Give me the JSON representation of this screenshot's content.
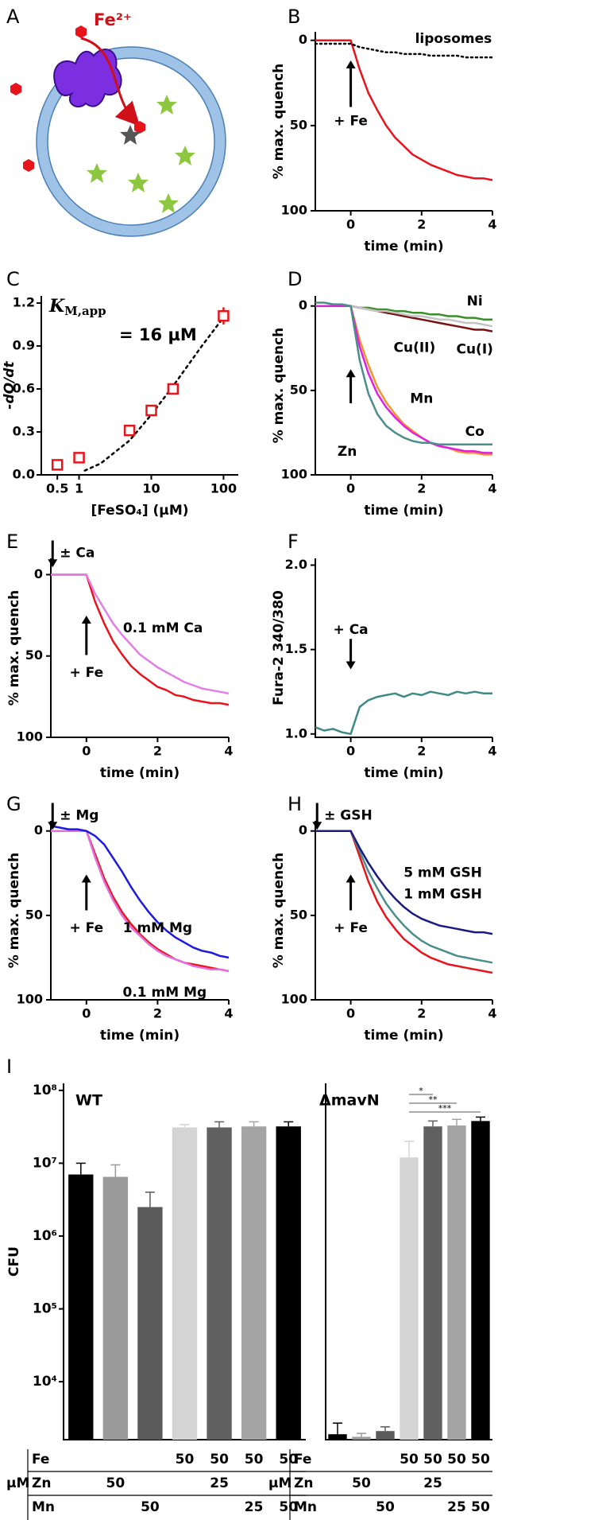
{
  "chart_data": [
    {
      "type": "diagram",
      "panel": "A",
      "label": "Fe²⁺"
    },
    {
      "type": "line",
      "panel": "B",
      "x_label": "time (min)",
      "y_label": "% max. quench",
      "x": [
        -1,
        -0.75,
        -0.5,
        -0.25,
        0,
        0.25,
        0.5,
        0.75,
        1,
        1.25,
        1.5,
        1.75,
        2,
        2.25,
        2.5,
        2.75,
        3,
        3.25,
        3.5,
        3.75,
        4
      ],
      "xlim": [
        -1,
        4
      ],
      "xticks": [
        0,
        2,
        4
      ],
      "ylim": [
        100,
        -5
      ],
      "yticks": [
        0,
        50,
        100
      ],
      "annotations": [
        "+ Fe"
      ],
      "series": [
        {
          "color": "#e8141c",
          "values": [
            0,
            0,
            0,
            0,
            0,
            17,
            31,
            41,
            50,
            57,
            62,
            67,
            70,
            73,
            75,
            77,
            79,
            80,
            81,
            81,
            82
          ]
        },
        {
          "name": "liposomes",
          "color": "#000000",
          "style": "dotted",
          "values": [
            2,
            2,
            2,
            2,
            2,
            4,
            5,
            6,
            7,
            7,
            8,
            8,
            8,
            9,
            9,
            9,
            9,
            10,
            10,
            10,
            10
          ]
        }
      ]
    },
    {
      "type": "scatter",
      "panel": "C",
      "x_label": "[FeSO₄] (µM)",
      "y_label": "-dQ/dt",
      "xscale": "log",
      "x": [
        0.5,
        1,
        5,
        10,
        20,
        100
      ],
      "values": [
        0.07,
        0.12,
        0.31,
        0.45,
        0.6,
        1.11
      ],
      "errors": [
        0.02,
        0.02,
        0.02,
        0.02,
        0.02,
        0.06
      ],
      "color": "#e8141c",
      "fit": {
        "x": [
          1.2,
          2,
          5,
          10,
          20,
          50,
          100
        ],
        "values": [
          0.03,
          0.08,
          0.24,
          0.42,
          0.62,
          0.9,
          1.1
        ]
      },
      "xlim": [
        0.3,
        160
      ],
      "xticks": [
        0.5,
        1,
        10,
        100
      ],
      "ylim": [
        0,
        1.25
      ],
      "yticks": [
        {
          "value": 0,
          "label": "0.0"
        },
        0.3,
        0.6,
        0.9,
        1.2
      ],
      "annotation_symbol": "K",
      "annotation_subscript": "M,app",
      "annotation": "= 16 µM"
    },
    {
      "type": "line",
      "panel": "D",
      "x_label": "time (min)",
      "y_label": "% max. quench",
      "x": [
        -1,
        -0.75,
        -0.5,
        -0.25,
        0,
        0.25,
        0.5,
        0.75,
        1,
        1.25,
        1.5,
        1.75,
        2,
        2.25,
        2.5,
        2.75,
        3,
        3.25,
        3.5,
        3.75,
        4
      ],
      "xlim": [
        -1,
        4
      ],
      "xticks": [
        0,
        2,
        4
      ],
      "ylim": [
        100,
        -6
      ],
      "yticks": [
        0,
        50,
        100
      ],
      "series": [
        {
          "name": "Ni",
          "color": "#3a8f2a",
          "values": [
            0,
            0,
            0,
            0,
            0,
            1,
            1,
            2,
            2,
            3,
            3,
            4,
            4,
            5,
            5,
            6,
            6,
            7,
            7,
            8,
            8
          ]
        },
        {
          "name": "Cu(II)",
          "color": "#7a1010",
          "values": [
            0,
            0,
            0,
            0,
            0,
            1,
            2,
            3,
            4,
            5,
            6,
            7,
            8,
            9,
            10,
            11,
            12,
            13,
            14,
            14,
            15
          ]
        },
        {
          "name": "Cu(I)",
          "color": "#c4c4c4",
          "values": [
            0,
            0,
            0,
            0,
            0,
            1,
            2,
            3,
            3,
            4,
            5,
            6,
            6,
            7,
            8,
            8,
            9,
            10,
            10,
            11,
            12
          ]
        },
        {
          "name": "Mn",
          "color": "#f0962a",
          "values": [
            0,
            0,
            0,
            0,
            0,
            20,
            35,
            48,
            57,
            64,
            70,
            74,
            78,
            81,
            83,
            84,
            86,
            87,
            87,
            88,
            88
          ]
        },
        {
          "name": "Co",
          "color": "#e020e0",
          "values": [
            0,
            0,
            0,
            0,
            0,
            24,
            40,
            52,
            60,
            66,
            71,
            75,
            78,
            81,
            83,
            84,
            85,
            86,
            86,
            87,
            87
          ]
        },
        {
          "name": "Zn",
          "color": "#4a8e8a",
          "values": [
            -2,
            -2,
            -1,
            -1,
            0,
            32,
            52,
            64,
            71,
            75,
            78,
            80,
            81,
            81,
            82,
            82,
            82,
            82,
            82,
            82,
            82
          ]
        }
      ]
    },
    {
      "type": "line",
      "panel": "E",
      "x_label": "time (min)",
      "y_label": "% max. quench",
      "x": [
        -1,
        -0.75,
        -0.5,
        -0.25,
        0,
        0.25,
        0.5,
        0.75,
        1,
        1.25,
        1.5,
        1.75,
        2,
        2.25,
        2.5,
        2.75,
        3,
        3.25,
        3.5,
        3.75,
        4
      ],
      "xlim": [
        -1,
        4
      ],
      "xticks": [
        0,
        2,
        4
      ],
      "ylim": [
        100,
        -10
      ],
      "yticks": [
        0,
        50,
        100
      ],
      "annotations": [
        "± Ca",
        "+ Fe"
      ],
      "series": [
        {
          "color": "#e8141c",
          "values": [
            0,
            0,
            0,
            0,
            0,
            17,
            30,
            41,
            49,
            56,
            61,
            65,
            69,
            71,
            74,
            75,
            77,
            78,
            79,
            79,
            80
          ]
        },
        {
          "name": "0.1 mM Ca",
          "color": "#e27ee6",
          "values": [
            0,
            0,
            0,
            0,
            0,
            12,
            21,
            30,
            37,
            43,
            49,
            53,
            57,
            60,
            63,
            66,
            68,
            70,
            71,
            72,
            73
          ]
        }
      ]
    },
    {
      "type": "line",
      "panel": "F",
      "x_label": "time (min)",
      "y_label": "Fura-2 340/380",
      "x": [
        -1,
        -0.75,
        -0.5,
        -0.25,
        0,
        0.25,
        0.5,
        0.75,
        1,
        1.25,
        1.5,
        1.75,
        2,
        2.25,
        2.5,
        2.75,
        3,
        3.25,
        3.5,
        3.75,
        4
      ],
      "xlim": [
        -1,
        4
      ],
      "xticks": [
        0,
        2,
        4
      ],
      "ylim": [
        0.98,
        2.04
      ],
      "yticks": [
        {
          "value": 1,
          "label": "1.0"
        },
        1.5,
        {
          "value": 2,
          "label": "2.0"
        }
      ],
      "annotations": [
        "+ Ca"
      ],
      "series": [
        {
          "color": "#3d8a86",
          "values": [
            1.04,
            1.02,
            1.03,
            1.01,
            1.0,
            1.16,
            1.2,
            1.22,
            1.23,
            1.24,
            1.22,
            1.24,
            1.23,
            1.25,
            1.24,
            1.23,
            1.25,
            1.24,
            1.25,
            1.24,
            1.24
          ]
        }
      ]
    },
    {
      "type": "line",
      "panel": "G",
      "x_label": "time (min)",
      "y_label": "% max. quench",
      "x": [
        -1,
        -0.75,
        -0.5,
        -0.25,
        0,
        0.25,
        0.5,
        0.75,
        1,
        1.25,
        1.5,
        1.75,
        2,
        2.25,
        2.5,
        2.75,
        3,
        3.25,
        3.5,
        3.75,
        4
      ],
      "xlim": [
        -1,
        4
      ],
      "xticks": [
        0,
        2,
        4
      ],
      "ylim": [
        100,
        -6
      ],
      "yticks": [
        0,
        50,
        100
      ],
      "annotations": [
        "± Mg",
        "+ Fe"
      ],
      "series": [
        {
          "color": "#e8141c",
          "values": [
            0,
            0,
            0,
            0,
            0,
            14,
            28,
            39,
            48,
            55,
            61,
            66,
            70,
            73,
            76,
            78,
            79,
            80,
            81,
            82,
            83
          ]
        },
        {
          "name": "0.1 mM Mg",
          "color": "#e070e0",
          "values": [
            0,
            0,
            0,
            0,
            0,
            16,
            30,
            41,
            50,
            57,
            62,
            67,
            71,
            74,
            76,
            78,
            80,
            81,
            82,
            82,
            83
          ]
        },
        {
          "name": "1 mM Mg",
          "color": "#1a1ae0",
          "values": [
            -3,
            -2,
            -1,
            -1,
            0,
            3,
            8,
            16,
            24,
            33,
            41,
            48,
            54,
            59,
            63,
            66,
            69,
            71,
            72,
            74,
            75
          ]
        }
      ]
    },
    {
      "type": "line",
      "panel": "H",
      "x_label": "time (min)",
      "y_label": "% max. quench",
      "x": [
        -1,
        -0.75,
        -0.5,
        -0.25,
        0,
        0.25,
        0.5,
        0.75,
        1,
        1.25,
        1.5,
        1.75,
        2,
        2.25,
        2.5,
        2.75,
        3,
        3.25,
        3.5,
        3.75,
        4
      ],
      "xlim": [
        -1,
        4
      ],
      "xticks": [
        0,
        2,
        4
      ],
      "ylim": [
        100,
        -6
      ],
      "yticks": [
        0,
        50,
        100
      ],
      "annotations": [
        "± GSH",
        "+ Fe"
      ],
      "series": [
        {
          "color": "#e8141c",
          "values": [
            0,
            0,
            0,
            0,
            0,
            15,
            30,
            42,
            51,
            58,
            64,
            68,
            72,
            75,
            77,
            79,
            80,
            81,
            82,
            83,
            84
          ]
        },
        {
          "name": "1 mM GSH",
          "color": "#4a8e8a",
          "values": [
            0,
            0,
            0,
            0,
            0,
            12,
            24,
            34,
            43,
            50,
            56,
            61,
            65,
            68,
            70,
            72,
            74,
            75,
            76,
            77,
            78
          ]
        },
        {
          "name": "5 mM GSH",
          "color": "#1a1a80",
          "values": [
            0,
            0,
            0,
            0,
            0,
            10,
            19,
            27,
            34,
            40,
            45,
            49,
            52,
            54,
            56,
            57,
            58,
            59,
            60,
            60,
            61
          ]
        }
      ]
    },
    {
      "type": "bar",
      "panel": "I",
      "title": "WT",
      "y_label": "CFU",
      "yscale": "log",
      "values": [
        7000000,
        6500000,
        2500000,
        31000000,
        31000000,
        32000000,
        32000000
      ],
      "errors": [
        3000000,
        3000000,
        1500000,
        3000000,
        6000000,
        5000000,
        5000000
      ],
      "colors": [
        "#000000",
        "#9a9a9a",
        "#5a5a5a",
        "#d4d4d4",
        "#606060",
        "#a4a4a4",
        "#000000"
      ],
      "ylim": [
        1600,
        125000000
      ],
      "yticks": [
        {
          "value": 10000,
          "label": "10⁴"
        },
        {
          "value": 100000,
          "label": "10⁵"
        },
        {
          "value": 1000000,
          "label": "10⁶"
        },
        {
          "value": 10000000,
          "label": "10⁷"
        },
        {
          "value": 100000000,
          "label": "10⁸"
        }
      ],
      "table": {
        "unit": "µM",
        "rows": [
          {
            "label": "Fe",
            "values": [
              null,
              null,
              null,
              50,
              50,
              50,
              50
            ]
          },
          {
            "label": "Zn",
            "values": [
              null,
              50,
              null,
              null,
              25,
              null,
              null
            ]
          },
          {
            "label": "Mn",
            "values": [
              null,
              null,
              50,
              null,
              null,
              25,
              50
            ]
          }
        ]
      }
    },
    {
      "type": "bar",
      "title": "ΔmavN",
      "yscale": "log",
      "values": [
        1900,
        1750,
        2100,
        12000000,
        32000000,
        33000000,
        38000000
      ],
      "errors": [
        800,
        200,
        300,
        8000000,
        6000000,
        7000000,
        5000000
      ],
      "colors": [
        "#000000",
        "#9a9a9a",
        "#5a5a5a",
        "#d4d4d4",
        "#606060",
        "#a4a4a4",
        "#000000"
      ],
      "ylim": [
        1600,
        125000000
      ],
      "significance": [
        null,
        null,
        null,
        null,
        "*",
        "**",
        "***"
      ],
      "table": {
        "unit": "µM",
        "rows": [
          {
            "label": "Fe",
            "values": [
              null,
              null,
              null,
              50,
              50,
              50,
              50
            ]
          },
          {
            "label": "Zn",
            "values": [
              null,
              50,
              null,
              null,
              25,
              null,
              null
            ]
          },
          {
            "label": "Mn",
            "values": [
              null,
              null,
              50,
              null,
              null,
              25,
              50
            ]
          }
        ]
      }
    }
  ]
}
